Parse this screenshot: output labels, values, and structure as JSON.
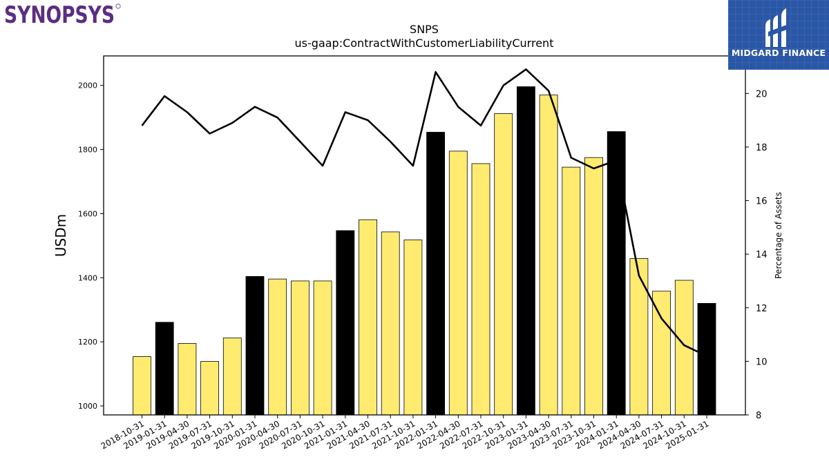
{
  "logos": {
    "left": "SYNOPSYS",
    "right": "MIDGARD FINANCE"
  },
  "colors": {
    "bar_normal": "#ffeb70",
    "bar_highlight": "#000000",
    "line": "#000000",
    "synopsys_purple": "#5a2d82",
    "midgard_blue": "#2a56a6"
  },
  "chart_data": {
    "type": "bar",
    "title": "SNPS",
    "subtitle": "us-gaap:ContractWithCustomerLiabilityCurrent",
    "ylabel": "USDm",
    "y2label": "Percentage of Assets",
    "ylim": [
      972,
      2092
    ],
    "y2lim": [
      8,
      21.4
    ],
    "yticks": [
      1000,
      1200,
      1400,
      1600,
      1800,
      2000
    ],
    "y2ticks": [
      8,
      10,
      12,
      14,
      16,
      18,
      20
    ],
    "grid": false,
    "categories": [
      "2018-10-31",
      "2019-01-31",
      "2019-04-30",
      "2019-07-31",
      "2019-10-31",
      "2020-01-31",
      "2020-04-30",
      "2020-07-31",
      "2020-10-31",
      "2021-01-31",
      "2021-04-30",
      "2021-07-31",
      "2021-10-31",
      "2022-01-31",
      "2022-04-30",
      "2022-07-31",
      "2022-10-31",
      "2023-01-31",
      "2023-04-30",
      "2023-07-31",
      "2023-10-31",
      "2024-01-31",
      "2024-04-30",
      "2024-07-31",
      "2024-10-31",
      "2025-01-31"
    ],
    "series": [
      {
        "kind": "bar",
        "values": [
          1154,
          1261,
          1195,
          1139,
          1212,
          1404,
          1396,
          1390,
          1390,
          1547,
          1581,
          1543,
          1518,
          1854,
          1795,
          1756,
          1912,
          1996,
          1970,
          1745,
          1775,
          1856,
          1460,
          1358,
          1392,
          1320
        ],
        "highlight": [
          false,
          true,
          false,
          false,
          false,
          true,
          false,
          false,
          false,
          true,
          false,
          false,
          false,
          true,
          false,
          false,
          false,
          true,
          false,
          false,
          false,
          true,
          false,
          false,
          false,
          true
        ]
      },
      {
        "kind": "line",
        "axis": "right",
        "values": [
          18.8,
          19.9,
          19.3,
          18.5,
          18.9,
          19.5,
          19.1,
          18.2,
          17.3,
          19.3,
          19.0,
          18.2,
          17.3,
          20.8,
          19.5,
          18.8,
          20.3,
          20.9,
          20.1,
          17.6,
          17.2,
          17.5,
          13.2,
          11.6,
          10.6,
          10.2
        ]
      }
    ]
  }
}
